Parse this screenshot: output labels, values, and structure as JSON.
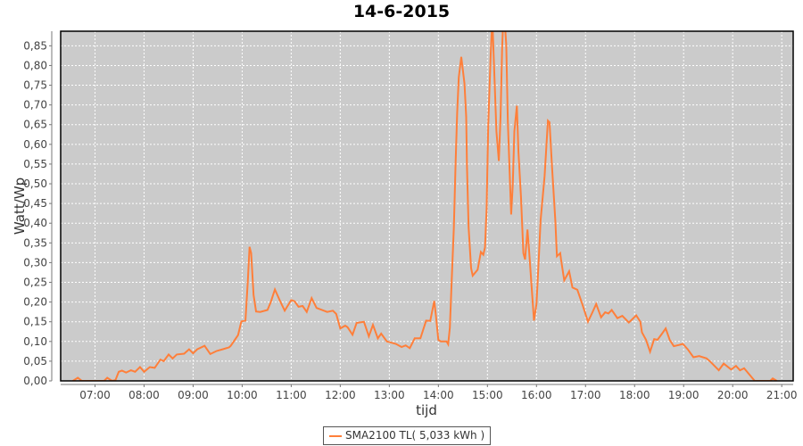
{
  "chart_data": {
    "type": "line",
    "title": "14-6-2015",
    "xlabel": "tijd",
    "ylabel": "Watt/Wp",
    "xlim": [
      "06:18",
      "21:14"
    ],
    "ylim": [
      0,
      0.887
    ],
    "x_ticks": [
      "07:00",
      "08:00",
      "09:00",
      "10:00",
      "11:00",
      "12:00",
      "13:00",
      "14:00",
      "15:00",
      "16:00",
      "17:00",
      "18:00",
      "19:00",
      "20:00",
      "21:00"
    ],
    "y_ticks": [
      "0,00",
      "0,05",
      "0,10",
      "0,15",
      "0,20",
      "0,25",
      "0,30",
      "0,35",
      "0,40",
      "0,45",
      "0,50",
      "0,55",
      "0,60",
      "0,65",
      "0,70",
      "0,75",
      "0,80",
      "0,85"
    ],
    "grid": true,
    "legend_position": "bottom",
    "colors": {
      "plot_background": "#cbcbcb",
      "grid": "#ffffff",
      "series": "#ff7f3a"
    },
    "series": [
      {
        "name": "SMA2100 TL( 5,033 kWh )",
        "x": [
          "06:33",
          "06:39",
          "06:44",
          "07:11",
          "07:15",
          "07:21",
          "07:25",
          "07:29",
          "07:33",
          "07:38",
          "07:44",
          "07:49",
          "07:55",
          "08:00",
          "08:07",
          "08:13",
          "08:20",
          "08:24",
          "08:30",
          "08:35",
          "08:40",
          "08:49",
          "08:55",
          "09:00",
          "09:05",
          "09:14",
          "09:21",
          "09:29",
          "09:36",
          "09:44",
          "09:46",
          "09:51",
          "09:55",
          "09:59",
          "10:04",
          "10:07",
          "10:09",
          "10:11",
          "10:14",
          "10:17",
          "10:22",
          "10:31",
          "10:35",
          "10:40",
          "10:46",
          "10:52",
          "11:00",
          "11:04",
          "11:09",
          "11:14",
          "11:19",
          "11:25",
          "11:31",
          "11:44",
          "11:51",
          "11:55",
          "12:00",
          "12:06",
          "12:09",
          "12:15",
          "12:20",
          "12:29",
          "12:35",
          "12:40",
          "12:46",
          "12:50",
          "12:57",
          "13:08",
          "13:15",
          "13:20",
          "13:25",
          "13:31",
          "13:38",
          "13:45",
          "13:50",
          "13:55",
          "13:57",
          "14:00",
          "14:03",
          "14:10",
          "14:12",
          "14:14",
          "14:16",
          "14:19",
          "14:21",
          "14:23",
          "14:25",
          "14:28",
          "14:32",
          "14:34",
          "14:35",
          "14:37",
          "14:40",
          "14:42",
          "14:48",
          "14:52",
          "14:55",
          "14:57",
          "14:59",
          "15:01",
          "15:04",
          "15:06",
          "15:08",
          "15:11",
          "15:14",
          "15:16",
          "15:18",
          "15:20",
          "15:23",
          "15:25",
          "15:27",
          "15:29",
          "15:31",
          "15:33",
          "15:36",
          "15:38",
          "15:41",
          "15:44",
          "15:46",
          "15:49",
          "15:51",
          "15:54",
          "15:57",
          "16:00",
          "16:03",
          "16:05",
          "16:10",
          "16:14",
          "16:16",
          "16:19",
          "16:23",
          "16:25",
          "16:29",
          "16:30",
          "16:34",
          "16:40",
          "16:44",
          "16:50",
          "16:56",
          "17:03",
          "17:08",
          "17:13",
          "17:19",
          "17:24",
          "17:28",
          "17:32",
          "17:39",
          "17:45",
          "17:53",
          "18:02",
          "18:07",
          "18:09",
          "18:14",
          "18:19",
          "18:24",
          "18:28",
          "18:34",
          "18:38",
          "18:43",
          "18:48",
          "18:54",
          "18:59",
          "19:05",
          "19:12",
          "19:19",
          "19:28",
          "19:33",
          "19:43",
          "19:49",
          "19:58",
          "20:04",
          "20:09",
          "20:14",
          "20:27",
          "20:46",
          "20:49",
          "20:54"
        ],
        "values": [
          0,
          0.008,
          0,
          0,
          0.008,
          0,
          0.002,
          0.023,
          0.026,
          0.021,
          0.027,
          0.023,
          0.035,
          0.023,
          0.035,
          0.033,
          0.054,
          0.05,
          0.067,
          0.057,
          0.067,
          0.069,
          0.08,
          0.07,
          0.08,
          0.089,
          0.068,
          0.076,
          0.08,
          0.085,
          0.089,
          0.104,
          0.116,
          0.151,
          0.153,
          0.255,
          0.34,
          0.324,
          0.218,
          0.176,
          0.175,
          0.18,
          0.2,
          0.232,
          0.204,
          0.178,
          0.205,
          0.202,
          0.188,
          0.19,
          0.175,
          0.21,
          0.185,
          0.175,
          0.178,
          0.17,
          0.133,
          0.14,
          0.136,
          0.117,
          0.147,
          0.15,
          0.113,
          0.142,
          0.108,
          0.12,
          0.1,
          0.094,
          0.086,
          0.09,
          0.083,
          0.108,
          0.108,
          0.153,
          0.152,
          0.203,
          0.165,
          0.104,
          0.1,
          0.1,
          0.093,
          0.135,
          0.24,
          0.39,
          0.55,
          0.68,
          0.77,
          0.822,
          0.754,
          0.67,
          0.543,
          0.39,
          0.286,
          0.267,
          0.282,
          0.327,
          0.32,
          0.339,
          0.437,
          0.648,
          0.83,
          0.92,
          0.807,
          0.633,
          0.558,
          0.67,
          0.845,
          0.95,
          0.853,
          0.656,
          0.543,
          0.422,
          0.497,
          0.633,
          0.698,
          0.58,
          0.467,
          0.324,
          0.308,
          0.384,
          0.331,
          0.24,
          0.153,
          0.195,
          0.316,
          0.407,
          0.52,
          0.66,
          0.656,
          0.543,
          0.407,
          0.316,
          0.324,
          0.308,
          0.255,
          0.278,
          0.237,
          0.231,
          0.195,
          0.15,
          0.172,
          0.195,
          0.161,
          0.174,
          0.171,
          0.18,
          0.159,
          0.165,
          0.148,
          0.166,
          0.15,
          0.123,
          0.104,
          0.074,
          0.106,
          0.104,
          0.121,
          0.133,
          0.104,
          0.088,
          0.091,
          0.094,
          0.08,
          0.06,
          0.063,
          0.057,
          0.048,
          0.027,
          0.044,
          0.029,
          0.038,
          0.027,
          0.032,
          0,
          0,
          0.006,
          0
        ]
      }
    ]
  }
}
